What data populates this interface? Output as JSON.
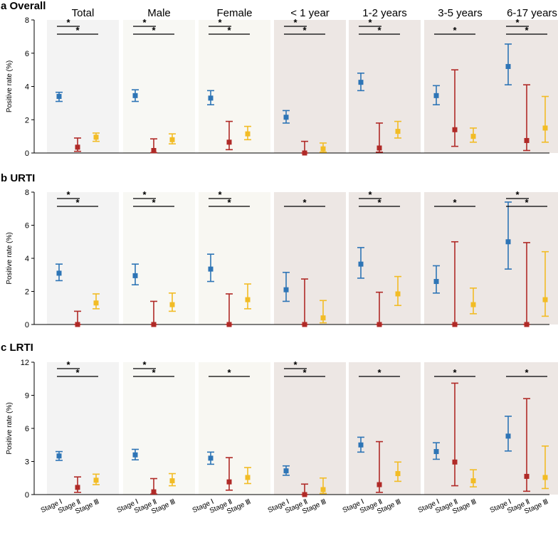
{
  "colors": {
    "stage1": "#2e75b6",
    "stage2": "#b02a27",
    "stage3": "#f2bc25",
    "bg_light": [
      "#f3f3f3",
      "#f8f8f4",
      "#f8f7f2"
    ],
    "bg_dark": "#ede7e4"
  },
  "groups": [
    "Total",
    "Male",
    "Female",
    "< 1 year",
    "1-2 years",
    "3-5 years",
    "6-17 years"
  ],
  "stages": [
    "Stage Ⅰ",
    "Stage Ⅱ",
    "Stage Ⅲ"
  ],
  "chart_data": [
    {
      "type": "scatter",
      "panel": "a",
      "title": "a Overall",
      "ylabel": "Positive rate (%)",
      "ylim": [
        0,
        8
      ],
      "yticks": [
        0,
        2,
        4,
        6,
        8
      ],
      "series": [
        {
          "group": "Total",
          "points": [
            {
              "stage": "Stage Ⅰ",
              "value": 3.4,
              "lo": 3.1,
              "hi": 3.65
            },
            {
              "stage": "Stage Ⅱ",
              "value": 0.35,
              "lo": 0.1,
              "hi": 0.9
            },
            {
              "stage": "Stage Ⅲ",
              "value": 0.95,
              "lo": 0.7,
              "hi": 1.2
            }
          ],
          "sig": [
            {
              "from": 0,
              "to": 1,
              "label": "*"
            },
            {
              "from": 0,
              "to": 2,
              "label": "*"
            }
          ]
        },
        {
          "group": "Male",
          "points": [
            {
              "stage": "Stage Ⅰ",
              "value": 3.45,
              "lo": 3.1,
              "hi": 3.8
            },
            {
              "stage": "Stage Ⅱ",
              "value": 0.15,
              "lo": 0.02,
              "hi": 0.85
            },
            {
              "stage": "Stage Ⅲ",
              "value": 0.8,
              "lo": 0.55,
              "hi": 1.15
            }
          ],
          "sig": [
            {
              "from": 0,
              "to": 1,
              "label": "*"
            },
            {
              "from": 0,
              "to": 2,
              "label": "*"
            }
          ]
        },
        {
          "group": "Female",
          "points": [
            {
              "stage": "Stage Ⅰ",
              "value": 3.3,
              "lo": 2.9,
              "hi": 3.75
            },
            {
              "stage": "Stage Ⅱ",
              "value": 0.65,
              "lo": 0.2,
              "hi": 1.9
            },
            {
              "stage": "Stage Ⅲ",
              "value": 1.15,
              "lo": 0.8,
              "hi": 1.6
            }
          ],
          "sig": [
            {
              "from": 0,
              "to": 1,
              "label": "*"
            },
            {
              "from": 0,
              "to": 2,
              "label": "*"
            }
          ]
        },
        {
          "group": "< 1 year",
          "points": [
            {
              "stage": "Stage Ⅰ",
              "value": 2.15,
              "lo": 1.8,
              "hi": 2.55
            },
            {
              "stage": "Stage Ⅱ",
              "value": 0.0,
              "lo": 0.0,
              "hi": 0.7
            },
            {
              "stage": "Stage Ⅲ",
              "value": 0.25,
              "lo": 0.05,
              "hi": 0.6
            }
          ],
          "sig": [
            {
              "from": 0,
              "to": 1,
              "label": "*"
            },
            {
              "from": 0,
              "to": 2,
              "label": "*"
            }
          ]
        },
        {
          "group": "1-2 years",
          "points": [
            {
              "stage": "Stage Ⅰ",
              "value": 4.25,
              "lo": 3.75,
              "hi": 4.8
            },
            {
              "stage": "Stage Ⅱ",
              "value": 0.3,
              "lo": 0.05,
              "hi": 1.8
            },
            {
              "stage": "Stage Ⅲ",
              "value": 1.3,
              "lo": 0.9,
              "hi": 1.9
            }
          ],
          "sig": [
            {
              "from": 0,
              "to": 1,
              "label": "*"
            },
            {
              "from": 0,
              "to": 2,
              "label": "*"
            }
          ]
        },
        {
          "group": "3-5 years",
          "points": [
            {
              "stage": "Stage Ⅰ",
              "value": 3.45,
              "lo": 2.9,
              "hi": 4.05
            },
            {
              "stage": "Stage Ⅱ",
              "value": 1.4,
              "lo": 0.4,
              "hi": 5.0
            },
            {
              "stage": "Stage Ⅲ",
              "value": 1.0,
              "lo": 0.65,
              "hi": 1.5
            }
          ],
          "sig": [
            {
              "from": 0,
              "to": 2,
              "label": "*"
            }
          ]
        },
        {
          "group": "6-17 years",
          "points": [
            {
              "stage": "Stage Ⅰ",
              "value": 5.2,
              "lo": 4.1,
              "hi": 6.55
            },
            {
              "stage": "Stage Ⅱ",
              "value": 0.75,
              "lo": 0.15,
              "hi": 4.1
            },
            {
              "stage": "Stage Ⅲ",
              "value": 1.5,
              "lo": 0.65,
              "hi": 3.4
            }
          ],
          "sig": [
            {
              "from": 0,
              "to": 1,
              "label": "*"
            },
            {
              "from": 0,
              "to": 2,
              "label": "*"
            }
          ]
        }
      ]
    },
    {
      "type": "scatter",
      "panel": "b",
      "title": "b URTI",
      "ylabel": "Positive rate (%)",
      "ylim": [
        0,
        8
      ],
      "yticks": [
        0,
        2,
        4,
        6,
        8
      ],
      "series": [
        {
          "group": "Total",
          "points": [
            {
              "stage": "Stage Ⅰ",
              "value": 3.1,
              "lo": 2.65,
              "hi": 3.65
            },
            {
              "stage": "Stage Ⅱ",
              "value": 0.0,
              "lo": 0.0,
              "hi": 0.8
            },
            {
              "stage": "Stage Ⅲ",
              "value": 1.3,
              "lo": 0.95,
              "hi": 1.85
            }
          ],
          "sig": [
            {
              "from": 0,
              "to": 1,
              "label": "*"
            },
            {
              "from": 0,
              "to": 2,
              "label": "*"
            }
          ]
        },
        {
          "group": "Male",
          "points": [
            {
              "stage": "Stage Ⅰ",
              "value": 2.95,
              "lo": 2.4,
              "hi": 3.65
            },
            {
              "stage": "Stage Ⅱ",
              "value": 0.0,
              "lo": 0.0,
              "hi": 1.4
            },
            {
              "stage": "Stage Ⅲ",
              "value": 1.2,
              "lo": 0.8,
              "hi": 1.9
            }
          ],
          "sig": [
            {
              "from": 0,
              "to": 1,
              "label": "*"
            },
            {
              "from": 0,
              "to": 2,
              "label": "*"
            }
          ]
        },
        {
          "group": "Female",
          "points": [
            {
              "stage": "Stage Ⅰ",
              "value": 3.35,
              "lo": 2.6,
              "hi": 4.25
            },
            {
              "stage": "Stage Ⅱ",
              "value": 0.0,
              "lo": 0.0,
              "hi": 1.85
            },
            {
              "stage": "Stage Ⅲ",
              "value": 1.5,
              "lo": 0.95,
              "hi": 2.45
            }
          ],
          "sig": [
            {
              "from": 0,
              "to": 1,
              "label": "*"
            },
            {
              "from": 0,
              "to": 2,
              "label": "*"
            }
          ]
        },
        {
          "group": "< 1 year",
          "points": [
            {
              "stage": "Stage Ⅰ",
              "value": 2.1,
              "lo": 1.4,
              "hi": 3.15
            },
            {
              "stage": "Stage Ⅱ",
              "value": 0.0,
              "lo": 0.0,
              "hi": 2.75
            },
            {
              "stage": "Stage Ⅲ",
              "value": 0.4,
              "lo": 0.1,
              "hi": 1.45
            }
          ],
          "sig": [
            {
              "from": 0,
              "to": 2,
              "label": "*"
            }
          ]
        },
        {
          "group": "1-2 years",
          "points": [
            {
              "stage": "Stage Ⅰ",
              "value": 3.65,
              "lo": 2.8,
              "hi": 4.65
            },
            {
              "stage": "Stage Ⅱ",
              "value": 0.0,
              "lo": 0.0,
              "hi": 1.95
            },
            {
              "stage": "Stage Ⅲ",
              "value": 1.85,
              "lo": 1.15,
              "hi": 2.9
            }
          ],
          "sig": [
            {
              "from": 0,
              "to": 1,
              "label": "*"
            },
            {
              "from": 0,
              "to": 2,
              "label": "*"
            }
          ]
        },
        {
          "group": "3-5 years",
          "points": [
            {
              "stage": "Stage Ⅰ",
              "value": 2.6,
              "lo": 1.9,
              "hi": 3.55
            },
            {
              "stage": "Stage Ⅱ",
              "value": 0.0,
              "lo": 0.0,
              "hi": 5.0
            },
            {
              "stage": "Stage Ⅲ",
              "value": 1.2,
              "lo": 0.65,
              "hi": 2.2
            }
          ],
          "sig": [
            {
              "from": 0,
              "to": 2,
              "label": "*"
            }
          ]
        },
        {
          "group": "6-17 years",
          "points": [
            {
              "stage": "Stage Ⅰ",
              "value": 5.0,
              "lo": 3.35,
              "hi": 7.4
            },
            {
              "stage": "Stage Ⅱ",
              "value": 0.0,
              "lo": 0.0,
              "hi": 4.95
            },
            {
              "stage": "Stage Ⅲ",
              "value": 1.5,
              "lo": 0.5,
              "hi": 4.4
            }
          ],
          "sig": [
            {
              "from": 0,
              "to": 1,
              "label": "*"
            },
            {
              "from": 0,
              "to": 2,
              "label": "*"
            }
          ]
        }
      ]
    },
    {
      "type": "scatter",
      "panel": "c",
      "title": "c LRTI",
      "ylabel": "Positive rate (%)",
      "ylim": [
        0,
        12
      ],
      "yticks": [
        0,
        3,
        6,
        9,
        12
      ],
      "series": [
        {
          "group": "Total",
          "points": [
            {
              "stage": "Stage Ⅰ",
              "value": 3.5,
              "lo": 3.1,
              "hi": 3.9
            },
            {
              "stage": "Stage Ⅱ",
              "value": 0.65,
              "lo": 0.2,
              "hi": 1.6
            },
            {
              "stage": "Stage Ⅲ",
              "value": 1.3,
              "lo": 0.9,
              "hi": 1.85
            }
          ],
          "sig": [
            {
              "from": 0,
              "to": 1,
              "label": "*"
            },
            {
              "from": 0,
              "to": 2,
              "label": "*"
            }
          ]
        },
        {
          "group": "Male",
          "points": [
            {
              "stage": "Stage Ⅰ",
              "value": 3.6,
              "lo": 3.15,
              "hi": 4.1
            },
            {
              "stage": "Stage Ⅱ",
              "value": 0.25,
              "lo": 0.05,
              "hi": 1.45
            },
            {
              "stage": "Stage Ⅲ",
              "value": 1.25,
              "lo": 0.8,
              "hi": 1.9
            }
          ],
          "sig": [
            {
              "from": 0,
              "to": 1,
              "label": "*"
            },
            {
              "from": 0,
              "to": 2,
              "label": "*"
            }
          ]
        },
        {
          "group": "Female",
          "points": [
            {
              "stage": "Stage Ⅰ",
              "value": 3.3,
              "lo": 2.75,
              "hi": 3.85
            },
            {
              "stage": "Stage Ⅱ",
              "value": 1.15,
              "lo": 0.4,
              "hi": 3.35
            },
            {
              "stage": "Stage Ⅲ",
              "value": 1.55,
              "lo": 1.0,
              "hi": 2.45
            }
          ],
          "sig": [
            {
              "from": 0,
              "to": 2,
              "label": "*"
            }
          ]
        },
        {
          "group": "< 1 year",
          "points": [
            {
              "stage": "Stage Ⅰ",
              "value": 2.15,
              "lo": 1.75,
              "hi": 2.6
            },
            {
              "stage": "Stage Ⅱ",
              "value": 0.0,
              "lo": 0.0,
              "hi": 0.95
            },
            {
              "stage": "Stage Ⅲ",
              "value": 0.45,
              "lo": 0.1,
              "hi": 1.5
            }
          ],
          "sig": [
            {
              "from": 0,
              "to": 1,
              "label": "*"
            },
            {
              "from": 0,
              "to": 2,
              "label": "*"
            }
          ]
        },
        {
          "group": "1-2 years",
          "points": [
            {
              "stage": "Stage Ⅰ",
              "value": 4.5,
              "lo": 3.85,
              "hi": 5.2
            },
            {
              "stage": "Stage Ⅱ",
              "value": 0.9,
              "lo": 0.2,
              "hi": 4.8
            },
            {
              "stage": "Stage Ⅲ",
              "value": 1.9,
              "lo": 1.2,
              "hi": 2.95
            }
          ],
          "sig": [
            {
              "from": 0,
              "to": 2,
              "label": "*"
            }
          ]
        },
        {
          "group": "3-5 years",
          "points": [
            {
              "stage": "Stage Ⅰ",
              "value": 3.9,
              "lo": 3.2,
              "hi": 4.7
            },
            {
              "stage": "Stage Ⅱ",
              "value": 2.95,
              "lo": 0.8,
              "hi": 10.1
            },
            {
              "stage": "Stage Ⅲ",
              "value": 1.25,
              "lo": 0.7,
              "hi": 2.25
            }
          ],
          "sig": [
            {
              "from": 0,
              "to": 2,
              "label": "*"
            }
          ]
        },
        {
          "group": "6-17 years",
          "points": [
            {
              "stage": "Stage Ⅰ",
              "value": 5.3,
              "lo": 3.95,
              "hi": 7.1
            },
            {
              "stage": "Stage Ⅱ",
              "value": 1.65,
              "lo": 0.3,
              "hi": 8.7
            },
            {
              "stage": "Stage Ⅲ",
              "value": 1.55,
              "lo": 0.55,
              "hi": 4.4
            }
          ],
          "sig": [
            {
              "from": 0,
              "to": 2,
              "label": "*"
            }
          ]
        }
      ]
    }
  ]
}
